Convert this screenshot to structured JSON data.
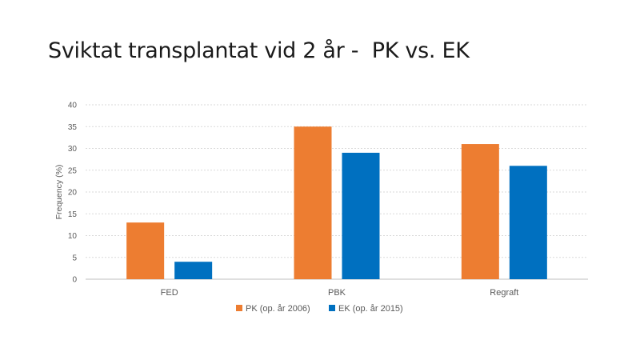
{
  "slide": {
    "title": "Sviktat transplantat vid 2 år -  PK vs. EK"
  },
  "chart_data": {
    "type": "bar",
    "categories": [
      "FED",
      "PBK",
      "Regraft"
    ],
    "series": [
      {
        "name": "PK (op. år 2006)",
        "values": [
          13,
          35,
          31
        ],
        "color": "#ED7D31"
      },
      {
        "name": "EK (op. år 2015)",
        "values": [
          4,
          29,
          26
        ],
        "color": "#0070C0"
      }
    ],
    "ylabel": "Frequency (%)",
    "xlabel": "",
    "ylim": [
      0,
      40
    ],
    "yticks": [
      0,
      5,
      10,
      15,
      20,
      25,
      30,
      35,
      40
    ],
    "grid": true,
    "legend_position": "bottom"
  }
}
